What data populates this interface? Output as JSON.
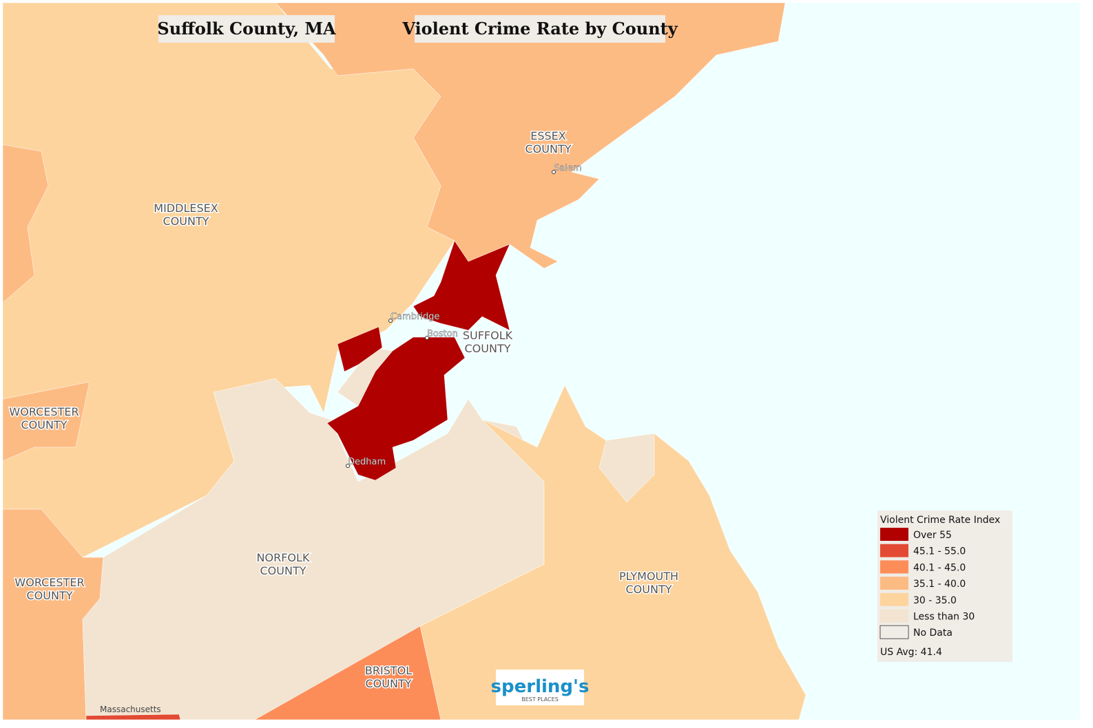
{
  "header": {
    "title": "Suffolk County, MA",
    "subtitle": "Violent Crime Rate by County"
  },
  "county_labels": [
    {
      "lines": [
        "ESSEX",
        "COUNTY"
      ]
    },
    {
      "lines": [
        "MIDDLESEX",
        "COUNTY"
      ]
    },
    {
      "lines": [
        "SUFFOLK",
        "COUNTY"
      ]
    },
    {
      "lines": [
        "WORCESTER",
        "COUNTY"
      ]
    },
    {
      "lines": [
        "WORCESTER",
        "COUNTY"
      ]
    },
    {
      "lines": [
        "NORFOLK",
        "COUNTY"
      ]
    },
    {
      "lines": [
        "PLYMOUTH",
        "COUNTY"
      ]
    },
    {
      "lines": [
        "BRISTOL",
        "COUNTY"
      ]
    }
  ],
  "places": [
    "Salem",
    "Cambridge",
    "Boston",
    "Dedham"
  ],
  "state_label": "Massachusetts",
  "legend": {
    "title": "Violent Crime Rate Index",
    "items": [
      {
        "label": "Over 55",
        "color": "#b00000"
      },
      {
        "label": "45.1 - 55.0",
        "color": "#e34a33"
      },
      {
        "label": "40.1 - 45.0",
        "color": "#fc8d59"
      },
      {
        "label": "35.1 - 40.0",
        "color": "#fdbb84"
      },
      {
        "label": "30 - 35.0",
        "color": "#fdd49e"
      },
      {
        "label": "Less than 30",
        "color": "#f2e4d0"
      },
      {
        "label": "No Data",
        "color": "#f0ece6"
      }
    ],
    "note": "US Avg: 41.4"
  },
  "logo": {
    "name": "sperling's",
    "tagline": "BEST PLACES"
  }
}
